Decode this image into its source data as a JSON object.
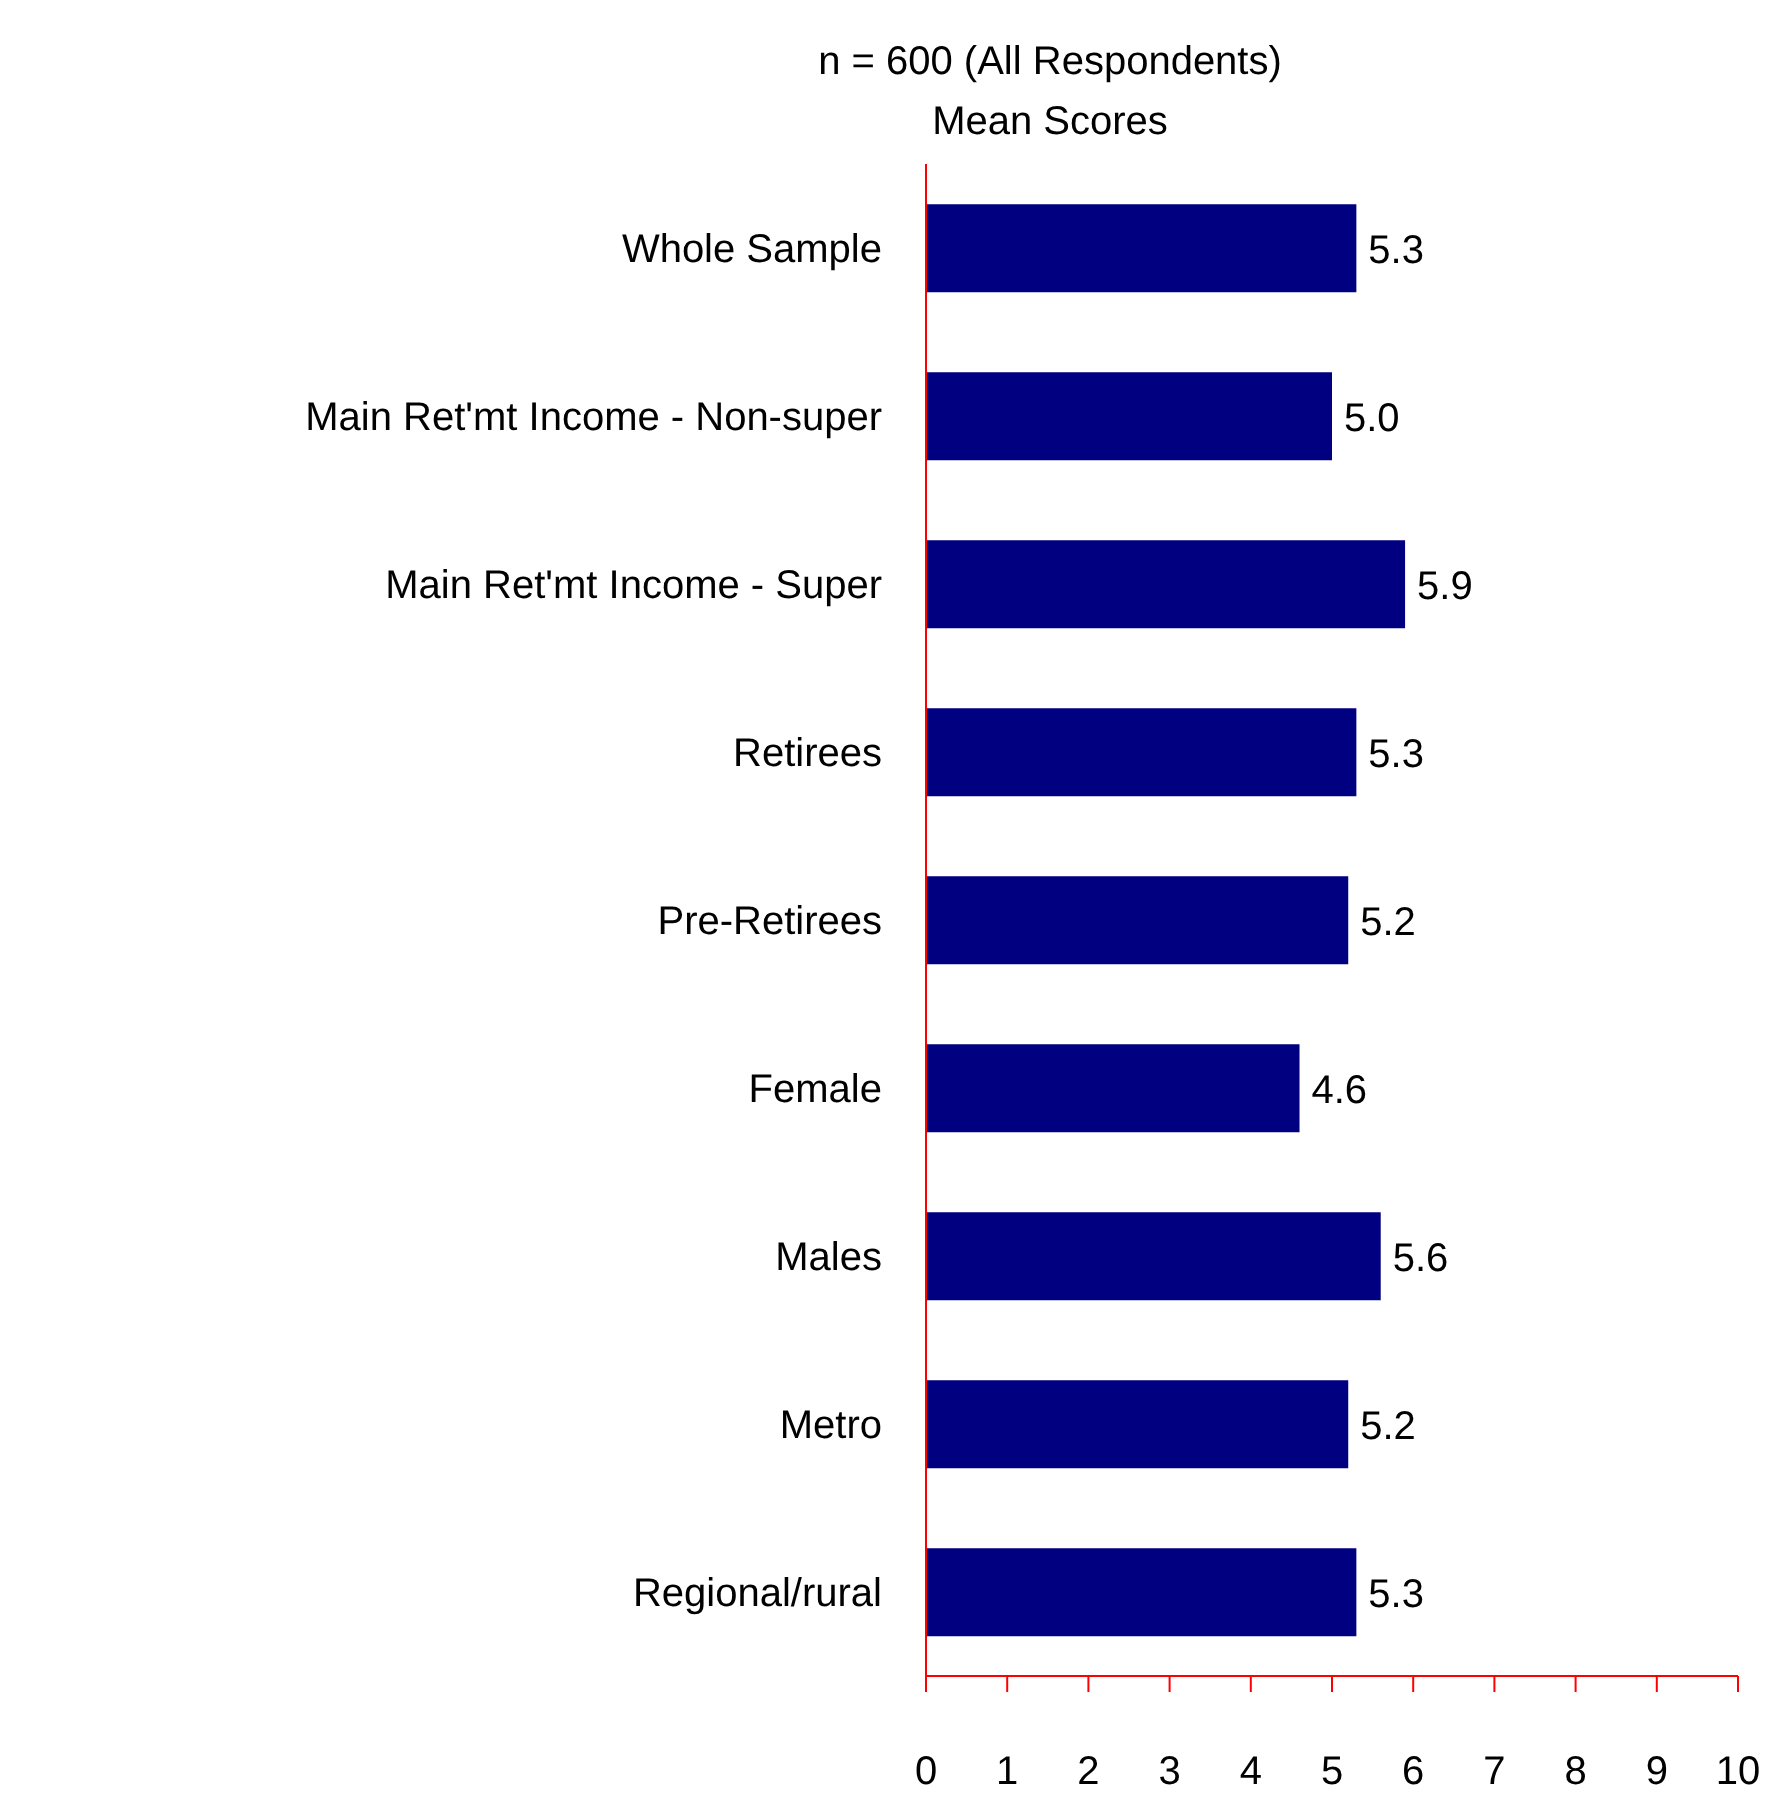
{
  "chart_data": {
    "type": "bar",
    "orientation": "horizontal",
    "title": "n = 600 (All Respondents)",
    "subtitle": "Mean Scores",
    "categories": [
      "Whole Sample",
      "Main Ret'mt Income - Non-super",
      "Main Ret'mt Income - Super",
      "Retirees",
      "Pre-Retirees",
      "Female",
      "Males",
      "Metro",
      "Regional/rural"
    ],
    "values": [
      5.3,
      5.0,
      5.9,
      5.3,
      5.2,
      4.6,
      5.6,
      5.2,
      5.3
    ],
    "color": "#000080",
    "xlim": [
      0,
      10
    ],
    "xticks": [
      0,
      1,
      2,
      3,
      4,
      5,
      6,
      7,
      8,
      9,
      10
    ],
    "value_labels": [
      "5.3",
      "5.0",
      "5.9",
      "5.3",
      "5.2",
      "4.6",
      "5.6",
      "5.2",
      "5.3"
    ],
    "grid": false,
    "legend": false
  }
}
